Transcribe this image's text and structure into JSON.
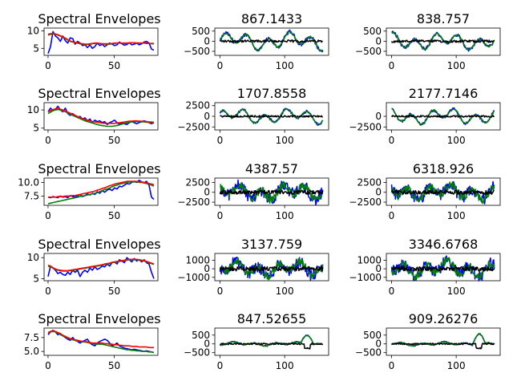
{
  "chart_data": {
    "type": "line",
    "layout": "5x3 grid of line subplots",
    "colors": {
      "signal": "#0000ff",
      "secondary": "#008000",
      "envelope": "#ff0000",
      "residual": "#000000"
    },
    "rows": [
      {
        "envelope": {
          "title": "Spectral Envelopes",
          "xlim": [
            -3,
            83
          ],
          "ylim": [
            3.0,
            10.8
          ],
          "xticks": [
            "0",
            "50"
          ],
          "yticks": [
            "5",
            "10"
          ]
        },
        "waves": [
          {
            "title": "867.1433",
            "ylim": [
              -700,
              650
            ],
            "yticks": [
              "500",
              "0",
              "−500"
            ],
            "xticks": [
              "0",
              "100"
            ],
            "amp": 400,
            "residual": 60,
            "noise": 0.15
          },
          {
            "title": "838.757",
            "ylim": [
              -700,
              650
            ],
            "yticks": [
              "500",
              "0",
              "−500"
            ],
            "xticks": [
              "0",
              "100"
            ],
            "amp": 380,
            "residual": 60,
            "noise": 0.15
          }
        ]
      },
      {
        "envelope": {
          "title": "Spectral Envelopes",
          "xlim": [
            -3,
            83
          ],
          "ylim": [
            4.5,
            12.0
          ],
          "xticks": [
            "0",
            "50"
          ],
          "yticks": [
            "5",
            "10"
          ]
        },
        "waves": [
          {
            "title": "1707.8558",
            "ylim": [
              -3200,
              3200
            ],
            "yticks": [
              "2500",
              "0",
              "−2500"
            ],
            "xticks": [
              "0",
              "100"
            ],
            "amp": 1600,
            "residual": 200,
            "noise": 0.1
          },
          {
            "title": "2177.7146",
            "ylim": [
              -3200,
              3200
            ],
            "yticks": [
              "0",
              "−2500"
            ],
            "xticks": [
              "0",
              "100"
            ],
            "amp": 1700,
            "residual": 200,
            "noise": 0.1
          }
        ]
      },
      {
        "envelope": {
          "title": "Spectral Envelopes",
          "xlim": [
            -3,
            83
          ],
          "ylim": [
            5.8,
            10.8
          ],
          "xticks": [
            "0",
            "50"
          ],
          "yticks": [
            "10.0",
            "7.5"
          ]
        },
        "waves": [
          {
            "title": "4387.57",
            "ylim": [
              -3300,
              3600
            ],
            "yticks": [
              "2500",
              "0",
              "−2500"
            ],
            "xticks": [
              "0",
              "100"
            ],
            "amp": 1800,
            "residual": 500,
            "noise": 0.9
          },
          {
            "title": "6318.926",
            "ylim": [
              -3300,
              3600
            ],
            "yticks": [
              "2500",
              "0",
              "−2500"
            ],
            "xticks": [
              "0",
              "100"
            ],
            "amp": 1800,
            "residual": 500,
            "noise": 0.9
          }
        ]
      },
      {
        "envelope": {
          "title": "Spectral Envelopes",
          "xlim": [
            -3,
            83
          ],
          "ylim": [
            4.5,
            11.0
          ],
          "xticks": [
            "0",
            "50"
          ],
          "yticks": [
            "10",
            "5"
          ]
        },
        "waves": [
          {
            "title": "3137.759",
            "ylim": [
              -1400,
              1800
            ],
            "yticks": [
              "1000",
              "0",
              "−1000"
            ],
            "xticks": [
              "0",
              "100"
            ],
            "amp": 800,
            "residual": 250,
            "noise": 0.9
          },
          {
            "title": "3346.6768",
            "ylim": [
              -1400,
              1800
            ],
            "yticks": [
              "1000",
              "0",
              "−1000"
            ],
            "xticks": [
              "0",
              "100"
            ],
            "amp": 850,
            "residual": 250,
            "noise": 0.9
          }
        ]
      },
      {
        "envelope": {
          "title": "Spectral Envelopes",
          "xlim": [
            -3,
            83
          ],
          "ylim": [
            4.3,
            9.2
          ],
          "xticks": [
            "0",
            "50"
          ],
          "yticks": [
            "7.5",
            "5.0"
          ]
        },
        "waves": [
          {
            "title": "847.52655",
            "ylim": [
              -650,
              900
            ],
            "yticks": [
              "500",
              "0",
              "−500"
            ],
            "xticks": [
              "0",
              "100"
            ],
            "amp": 100,
            "residual": 40,
            "noise": 0.3
          },
          {
            "title": "909.26276",
            "ylim": [
              -650,
              900
            ],
            "yticks": [
              "500",
              "0",
              "−500"
            ],
            "xticks": [
              "0",
              "100"
            ],
            "amp": 100,
            "residual": 40,
            "noise": 0.3
          }
        ]
      }
    ],
    "envelope_series": [
      {
        "blue": [
          3.5,
          5.5,
          9.8,
          8.5,
          8.0,
          7.0,
          8.5,
          7.2,
          6.5,
          8.0,
          7.8,
          6.2,
          7.0,
          6.5,
          5.8,
          6.0,
          5.2,
          6.0,
          5.0,
          5.5,
          6.5,
          5.8,
          6.2,
          5.5,
          6.0,
          6.5,
          6.2,
          5.8,
          6.0,
          6.8,
          6.3,
          5.9,
          6.1,
          6.6,
          6.0,
          6.2,
          6.5,
          6.0,
          6.3,
          6.8,
          7.0,
          6.5,
          4.8,
          4.5
        ],
        "green": [
          8.8,
          9.0,
          9.2,
          9.0,
          8.8,
          8.5,
          8.2,
          7.8,
          7.4,
          7.0,
          6.8,
          6.6,
          6.5,
          6.3,
          6.2,
          6.0,
          6.1,
          6.2,
          6.3,
          6.4,
          6.5,
          6.4,
          6.3,
          6.2,
          6.2,
          6.2,
          6.3,
          6.4,
          6.5,
          6.5,
          6.4,
          6.4,
          6.4,
          6.5,
          6.6,
          6.6,
          6.5,
          6.5,
          6.5,
          6.5,
          6.4,
          6.4,
          6.3,
          6.3
        ],
        "red": [
          9.0,
          9.2,
          9.3,
          9.1,
          8.9,
          8.6,
          8.3,
          7.9,
          7.5,
          7.1,
          6.9,
          6.7,
          6.6,
          6.4,
          6.3,
          6.2,
          6.2,
          6.3,
          6.4,
          6.5,
          6.5,
          6.4,
          6.3,
          6.3,
          6.3,
          6.3,
          6.4,
          6.5,
          6.5,
          6.5,
          6.5,
          6.5,
          6.5,
          6.6,
          6.6,
          6.6,
          6.5,
          6.5,
          6.5,
          6.5,
          6.5,
          6.4,
          6.4,
          6.4
        ]
      },
      {
        "blue": [
          9.5,
          10.5,
          9.8,
          10.2,
          11.0,
          10.0,
          9.5,
          10.5,
          9.0,
          8.5,
          9.0,
          8.5,
          8.0,
          8.2,
          7.5,
          7.8,
          7.0,
          7.5,
          6.5,
          7.2,
          6.8,
          7.0,
          6.5,
          6.8,
          6.0,
          6.5,
          6.8,
          7.2,
          6.5,
          6.0,
          6.5,
          6.2,
          6.0,
          6.5,
          6.8,
          6.5,
          6.2,
          6.5,
          6.8,
          7.0,
          6.8,
          6.5,
          6.2,
          6.5
        ],
        "green": [
          9.0,
          9.4,
          9.8,
          10.0,
          10.1,
          10.0,
          9.8,
          9.5,
          9.2,
          8.8,
          8.5,
          8.2,
          7.9,
          7.6,
          7.3,
          7.0,
          6.8,
          6.6,
          6.4,
          6.2,
          6.0,
          5.8,
          5.7,
          5.6,
          5.5,
          5.5,
          5.5,
          5.6,
          5.7,
          5.9,
          6.1,
          6.3,
          6.5,
          6.6,
          6.7,
          6.8,
          6.8,
          6.8,
          6.7,
          6.7,
          6.6,
          6.6,
          6.5,
          6.5
        ],
        "red": [
          9.5,
          9.8,
          10.1,
          10.3,
          10.3,
          10.2,
          10.0,
          9.7,
          9.4,
          9.1,
          8.8,
          8.5,
          8.2,
          7.9,
          7.6,
          7.4,
          7.2,
          7.0,
          6.8,
          6.7,
          6.6,
          6.5,
          6.4,
          6.3,
          6.3,
          6.3,
          6.3,
          6.3,
          6.4,
          6.5,
          6.6,
          6.7,
          6.8,
          6.9,
          6.9,
          7.0,
          7.0,
          6.9,
          6.9,
          6.8,
          6.8,
          6.7,
          6.7,
          6.6
        ]
      },
      {
        "blue": [
          7.3,
          7.2,
          7.4,
          7.3,
          7.2,
          7.5,
          7.3,
          7.4,
          7.2,
          7.6,
          7.4,
          7.3,
          7.5,
          7.8,
          7.4,
          7.6,
          7.9,
          7.7,
          8.0,
          7.8,
          8.3,
          8.0,
          8.5,
          8.2,
          8.6,
          8.8,
          8.5,
          9.0,
          8.8,
          9.3,
          9.2,
          9.5,
          9.8,
          9.7,
          10.0,
          10.2,
          10.0,
          10.4,
          10.1,
          9.9,
          10.2,
          9.5,
          7.3,
          6.9
        ],
        "green": [
          6.1,
          6.2,
          6.3,
          6.4,
          6.5,
          6.6,
          6.7,
          6.8,
          6.9,
          7.0,
          7.1,
          7.2,
          7.3,
          7.4,
          7.5,
          7.6,
          7.7,
          7.8,
          7.9,
          8.0,
          8.1,
          8.3,
          8.5,
          8.7,
          8.8,
          9.0,
          9.2,
          9.4,
          9.5,
          9.7,
          9.8,
          9.9,
          10.0,
          10.1,
          10.1,
          10.1,
          10.1,
          10.0,
          10.0,
          9.9,
          9.8,
          9.7,
          9.5,
          9.3
        ],
        "red": [
          7.3,
          7.3,
          7.3,
          7.3,
          7.4,
          7.4,
          7.4,
          7.5,
          7.5,
          7.5,
          7.6,
          7.6,
          7.7,
          7.8,
          7.9,
          8.0,
          8.1,
          8.2,
          8.3,
          8.4,
          8.6,
          8.7,
          8.9,
          9.0,
          9.2,
          9.4,
          9.5,
          9.7,
          9.8,
          9.9,
          10.0,
          10.1,
          10.2,
          10.2,
          10.2,
          10.2,
          10.2,
          10.1,
          10.1,
          10.0,
          9.9,
          9.8,
          9.7,
          9.6
        ]
      },
      {
        "blue": [
          5.5,
          8.0,
          7.5,
          7.0,
          6.2,
          6.5,
          6.0,
          5.8,
          6.5,
          6.0,
          7.0,
          6.5,
          7.0,
          5.5,
          6.5,
          7.0,
          6.5,
          7.5,
          7.0,
          7.8,
          7.2,
          7.5,
          8.0,
          7.8,
          8.5,
          8.0,
          8.8,
          9.0,
          8.5,
          9.5,
          9.2,
          8.8,
          10.0,
          9.5,
          9.0,
          9.8,
          9.2,
          9.5,
          9.0,
          9.5,
          8.8,
          8.5,
          6.5,
          5.0
        ],
        "green": [
          8.0,
          7.8,
          7.5,
          7.2,
          7.0,
          6.9,
          6.8,
          6.8,
          6.8,
          6.9,
          7.0,
          7.1,
          7.2,
          7.3,
          7.4,
          7.5,
          7.6,
          7.7,
          7.8,
          7.9,
          8.0,
          8.1,
          8.2,
          8.4,
          8.5,
          8.6,
          8.8,
          8.9,
          9.0,
          9.1,
          9.2,
          9.3,
          9.4,
          9.5,
          9.5,
          9.5,
          9.5,
          9.4,
          9.3,
          9.2,
          9.0,
          8.8,
          8.6,
          8.4
        ],
        "red": [
          8.2,
          8.0,
          7.6,
          7.3,
          7.1,
          7.0,
          6.9,
          6.9,
          6.9,
          7.0,
          7.1,
          7.2,
          7.3,
          7.4,
          7.5,
          7.6,
          7.7,
          7.8,
          7.9,
          8.0,
          8.1,
          8.2,
          8.3,
          8.5,
          8.6,
          8.7,
          8.9,
          9.0,
          9.1,
          9.2,
          9.3,
          9.4,
          9.5,
          9.6,
          9.6,
          9.6,
          9.6,
          9.5,
          9.4,
          9.3,
          9.1,
          8.9,
          8.7,
          8.5
        ]
      },
      {
        "blue": [
          8.0,
          8.5,
          8.8,
          8.5,
          8.0,
          8.2,
          7.8,
          7.5,
          7.2,
          7.0,
          7.5,
          7.0,
          6.8,
          6.5,
          6.8,
          7.0,
          7.2,
          6.5,
          6.2,
          6.0,
          6.5,
          6.8,
          7.0,
          7.2,
          7.0,
          6.5,
          6.0,
          6.2,
          6.5,
          6.0,
          5.8,
          5.6,
          5.5,
          5.4,
          5.3,
          5.4,
          5.3,
          5.2,
          5.1,
          5.0,
          5.1,
          5.0,
          4.9,
          4.8
        ],
        "green": [
          8.3,
          8.5,
          8.6,
          8.5,
          8.3,
          8.0,
          7.8,
          7.6,
          7.4,
          7.2,
          7.1,
          7.0,
          6.9,
          6.8,
          6.7,
          6.7,
          6.6,
          6.5,
          6.4,
          6.3,
          6.3,
          6.3,
          6.3,
          6.2,
          6.1,
          6.0,
          5.9,
          5.8,
          5.7,
          5.6,
          5.5,
          5.4,
          5.3,
          5.3,
          5.2,
          5.2,
          5.1,
          5.1,
          5.0,
          5.0,
          5.0,
          4.9,
          4.9,
          4.8
        ],
        "red": [
          8.4,
          8.6,
          8.7,
          8.6,
          8.4,
          8.2,
          7.9,
          7.7,
          7.5,
          7.3,
          7.2,
          7.1,
          7.0,
          6.9,
          6.8,
          6.8,
          6.7,
          6.6,
          6.5,
          6.5,
          6.5,
          6.5,
          6.5,
          6.4,
          6.4,
          6.3,
          6.3,
          6.2,
          6.2,
          6.1,
          6.1,
          6.0,
          6.0,
          6.0,
          5.9,
          5.9,
          5.9,
          5.8,
          5.8,
          5.8,
          5.8,
          5.7,
          5.7,
          5.7
        ]
      }
    ]
  }
}
